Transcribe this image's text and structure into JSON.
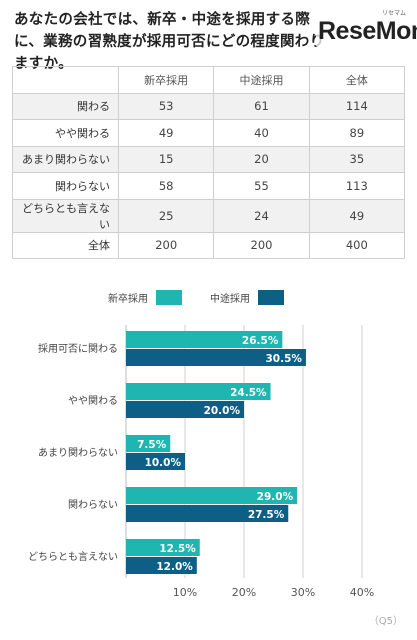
{
  "question": "あなたの会社では、新卒・中途を採用する際に、業務の習熟度が採用可否にどの程度関わりますか。",
  "logo": {
    "text": "ReseMom",
    "ruby": "リセマム"
  },
  "table": {
    "headers": [
      "",
      "新卒採用",
      "中途採用",
      "全体"
    ],
    "rows": [
      [
        "関わる",
        "53",
        "61",
        "114"
      ],
      [
        "やや関わる",
        "49",
        "40",
        "89"
      ],
      [
        "あまり関わらない",
        "15",
        "20",
        "35"
      ],
      [
        "関わらない",
        "58",
        "55",
        "113"
      ],
      [
        "どちらとも言えない",
        "25",
        "24",
        "49"
      ],
      [
        "全体",
        "200",
        "200",
        "400"
      ]
    ]
  },
  "colors": {
    "new_grad": "#1fb5b0",
    "mid_career": "#0e5f86",
    "grid": "#d0d0d0"
  },
  "chart_data": {
    "type": "bar",
    "orientation": "horizontal",
    "categories": [
      "採用可否に関わる",
      "やや関わる",
      "あまり関わらない",
      "関わらない",
      "どちらとも言えない"
    ],
    "series": [
      {
        "name": "新卒採用",
        "values": [
          26.5,
          24.5,
          7.5,
          29.0,
          12.5
        ],
        "labels": [
          "26.5%",
          "24.5%",
          "7.5%",
          "29.0%",
          "12.5%"
        ]
      },
      {
        "name": "中途採用",
        "values": [
          30.5,
          20.0,
          10.0,
          27.5,
          12.0
        ],
        "labels": [
          "30.5%",
          "20.0%",
          "10.0%",
          "27.5%",
          "12.0%"
        ]
      }
    ],
    "xlim": [
      0,
      40
    ],
    "xticks": [
      "10%",
      "20%",
      "30%",
      "40%"
    ],
    "xtick_values": [
      10,
      20,
      30,
      40
    ],
    "grid": true,
    "legend": "top"
  },
  "source": "（Q5）"
}
